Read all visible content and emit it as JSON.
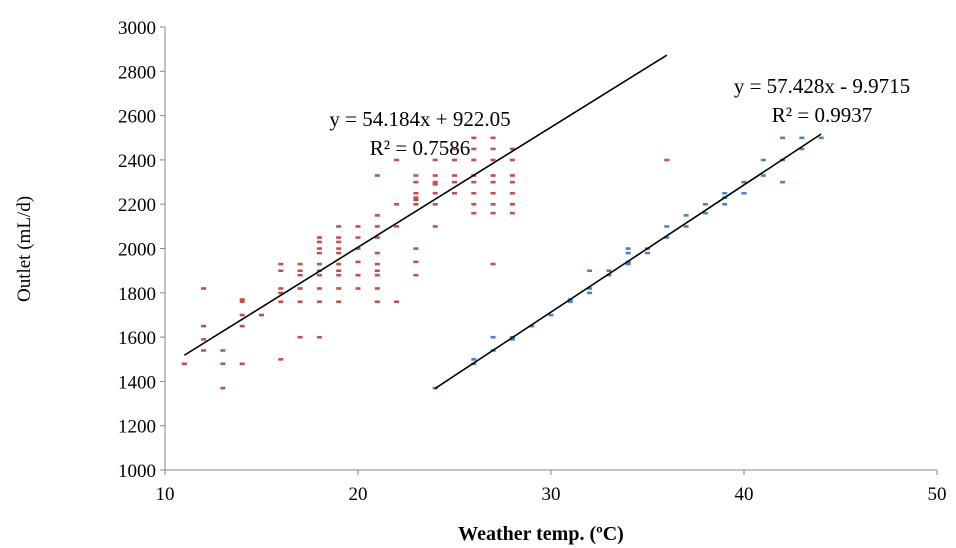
{
  "chart_data": {
    "type": "scatter",
    "xlabel": "Weather temp. (ºC)",
    "ylabel": "Outlet (mL/d)",
    "xlim": [
      10,
      50
    ],
    "ylim": [
      1000,
      3000
    ],
    "xticks": [
      "10",
      "20",
      "30",
      "40",
      "50"
    ],
    "yticks": [
      "1000",
      "1200",
      "1400",
      "1600",
      "1800",
      "2000",
      "2200",
      "2400",
      "2600",
      "2800",
      "3000"
    ],
    "grid": false,
    "legend": "none",
    "series": [
      {
        "color": "#c0504d",
        "marker": "dash",
        "points": [
          [
            11,
            1480
          ],
          [
            12,
            1820
          ],
          [
            12,
            1650
          ],
          [
            12,
            1590
          ],
          [
            12,
            1540
          ],
          [
            13,
            1540
          ],
          [
            13,
            1480
          ],
          [
            13,
            1370
          ],
          [
            14,
            1770
          ],
          [
            14,
            1760
          ],
          [
            14,
            1700
          ],
          [
            14,
            1650
          ],
          [
            14,
            1480
          ],
          [
            15,
            1700
          ],
          [
            16,
            1930
          ],
          [
            16,
            1900
          ],
          [
            16,
            1820
          ],
          [
            16,
            1800
          ],
          [
            16,
            1760
          ],
          [
            16,
            1500
          ],
          [
            17,
            1930
          ],
          [
            17,
            1900
          ],
          [
            17,
            1880
          ],
          [
            17,
            1820
          ],
          [
            17,
            1760
          ],
          [
            17,
            1600
          ],
          [
            18,
            2050
          ],
          [
            18,
            2030
          ],
          [
            18,
            2000
          ],
          [
            18,
            1980
          ],
          [
            18,
            1930
          ],
          [
            18,
            1900
          ],
          [
            18,
            1880
          ],
          [
            18,
            1820
          ],
          [
            18,
            1760
          ],
          [
            18,
            1600
          ],
          [
            19,
            2100
          ],
          [
            19,
            2050
          ],
          [
            19,
            2030
          ],
          [
            19,
            2000
          ],
          [
            19,
            1980
          ],
          [
            19,
            1930
          ],
          [
            19,
            1900
          ],
          [
            19,
            1880
          ],
          [
            19,
            1820
          ],
          [
            19,
            1760
          ],
          [
            20,
            2100
          ],
          [
            20,
            2050
          ],
          [
            20,
            2000
          ],
          [
            20,
            1940
          ],
          [
            20,
            1880
          ],
          [
            20,
            1820
          ],
          [
            21,
            2330
          ],
          [
            21,
            2150
          ],
          [
            21,
            2100
          ],
          [
            21,
            2050
          ],
          [
            21,
            1980
          ],
          [
            21,
            1930
          ],
          [
            21,
            1900
          ],
          [
            21,
            1880
          ],
          [
            21,
            1820
          ],
          [
            21,
            1760
          ],
          [
            22,
            2400
          ],
          [
            22,
            2200
          ],
          [
            22,
            2100
          ],
          [
            22,
            1760
          ],
          [
            23,
            2330
          ],
          [
            23,
            2300
          ],
          [
            23,
            2250
          ],
          [
            23,
            2230
          ],
          [
            23,
            2220
          ],
          [
            23,
            2200
          ],
          [
            23,
            2000
          ],
          [
            23,
            1940
          ],
          [
            23,
            1880
          ],
          [
            24,
            2400
          ],
          [
            24,
            2330
          ],
          [
            24,
            2300
          ],
          [
            24,
            2290
          ],
          [
            24,
            2250
          ],
          [
            24,
            2200
          ],
          [
            24,
            2100
          ],
          [
            25,
            2450
          ],
          [
            25,
            2400
          ],
          [
            25,
            2330
          ],
          [
            25,
            2300
          ],
          [
            25,
            2250
          ],
          [
            26,
            2500
          ],
          [
            26,
            2450
          ],
          [
            26,
            2400
          ],
          [
            26,
            2330
          ],
          [
            26,
            2300
          ],
          [
            26,
            2250
          ],
          [
            26,
            2200
          ],
          [
            26,
            2160
          ],
          [
            27,
            2500
          ],
          [
            27,
            2450
          ],
          [
            27,
            2400
          ],
          [
            27,
            2330
          ],
          [
            27,
            2300
          ],
          [
            27,
            2250
          ],
          [
            27,
            2200
          ],
          [
            27,
            2160
          ],
          [
            27,
            1930
          ],
          [
            28,
            2450
          ],
          [
            28,
            2400
          ],
          [
            28,
            2330
          ],
          [
            28,
            2300
          ],
          [
            28,
            2250
          ],
          [
            28,
            2200
          ],
          [
            28,
            2160
          ],
          [
            36,
            2400
          ]
        ],
        "trendline": {
          "slope": 54.184,
          "intercept": 922.05,
          "x_range": [
            11,
            36
          ]
        }
      },
      {
        "color": "#4f81bd",
        "marker": "dash",
        "points": [
          [
            24,
            1370
          ],
          [
            26,
            1480
          ],
          [
            26,
            1500
          ],
          [
            27,
            1540
          ],
          [
            27,
            1600
          ],
          [
            28,
            1590
          ],
          [
            28,
            1600
          ],
          [
            29,
            1650
          ],
          [
            30,
            1700
          ],
          [
            31,
            1760
          ],
          [
            31,
            1770
          ],
          [
            32,
            1800
          ],
          [
            32,
            1820
          ],
          [
            32,
            1900
          ],
          [
            33,
            1880
          ],
          [
            33,
            1900
          ],
          [
            34,
            1930
          ],
          [
            34,
            1940
          ],
          [
            34,
            1980
          ],
          [
            34,
            2000
          ],
          [
            35,
            1980
          ],
          [
            35,
            2000
          ],
          [
            36,
            2050
          ],
          [
            36,
            2100
          ],
          [
            37,
            2100
          ],
          [
            37,
            2150
          ],
          [
            38,
            2160
          ],
          [
            38,
            2200
          ],
          [
            39,
            2200
          ],
          [
            39,
            2230
          ],
          [
            39,
            2250
          ],
          [
            40,
            2250
          ],
          [
            40,
            2300
          ],
          [
            41,
            2330
          ],
          [
            41,
            2400
          ],
          [
            42,
            2300
          ],
          [
            42,
            2400
          ],
          [
            42,
            2500
          ],
          [
            43,
            2450
          ],
          [
            43,
            2500
          ],
          [
            44,
            2500
          ]
        ],
        "trendline": {
          "slope": 57.428,
          "intercept": -9.9715,
          "x_range": [
            24,
            44
          ]
        }
      }
    ],
    "annotations": [
      {
        "eq": "y = 54.184x + 922.05",
        "r2": "R² = 0.7586"
      },
      {
        "eq": "y = 57.428x - 9.9715",
        "r2": "R² = 0.9937"
      }
    ]
  }
}
